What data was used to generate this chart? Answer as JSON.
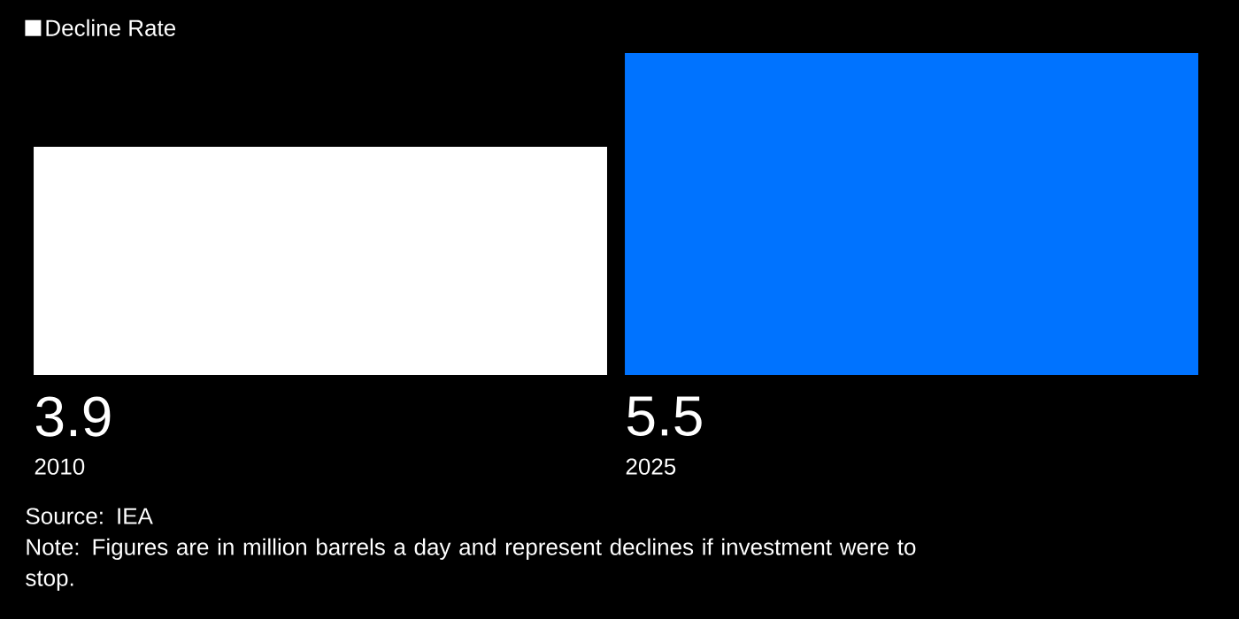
{
  "chart_data": {
    "type": "bar",
    "categories": [
      "2010",
      "2025"
    ],
    "series": [
      {
        "name": "Decline Rate",
        "colors": [
          "#ffffff",
          "#0073ff"
        ],
        "values": [
          3.9,
          5.5
        ]
      }
    ],
    "data_labels": true,
    "legend": "top left",
    "annotations": [
      "Source: IEA",
      "Note: Figures are in million barrels a day and represent declines if investment were to stop."
    ]
  }
}
